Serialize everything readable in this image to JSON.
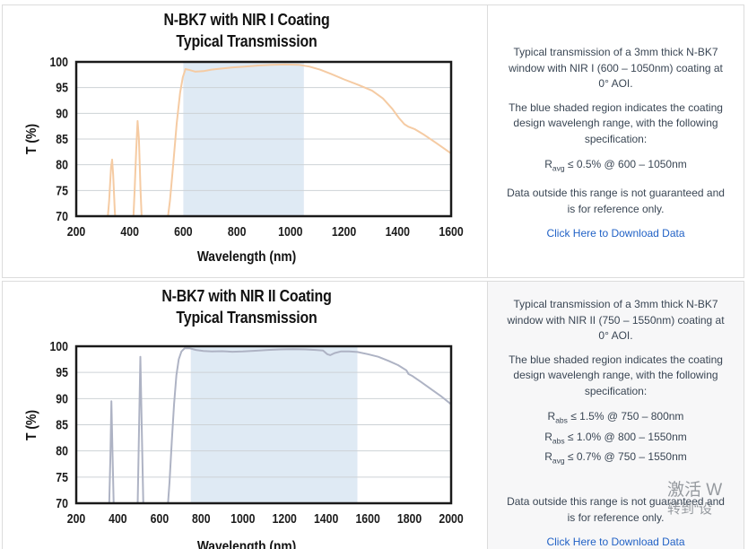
{
  "rows": [
    {
      "title_line1": "N-BK7 with NIR I Coating",
      "title_line2": "Typical Transmission",
      "xlabel": "Wavelength (nm)",
      "ylabel": "T (%)",
      "description": {
        "p1": "Typical transmission of a 3mm thick N-BK7 window with NIR I (600 – 1050nm) coating at 0° AOI.",
        "p2": "The blue shaded region indicates the coating design wavelengh range, with the following specification:",
        "specs": [
          {
            "base": "R",
            "sub": "avg",
            "text": " ≤ 0.5% @ 600 – 1050nm"
          }
        ],
        "p3": "Data outside this range is not guaranteed and is for reference only.",
        "link": "Click Here to Download Data"
      },
      "chart_data": {
        "type": "line",
        "title": "N-BK7 with NIR I Coating Typical Transmission",
        "xlabel": "Wavelength (nm)",
        "ylabel": "T (%)",
        "xlim": [
          200,
          1600
        ],
        "ylim": [
          70,
          100
        ],
        "xticks": [
          200,
          400,
          600,
          800,
          1000,
          1200,
          1400,
          1600
        ],
        "yticks": [
          70,
          75,
          80,
          85,
          90,
          95,
          100
        ],
        "grid": true,
        "grid_color": "#cdd2d6",
        "legend": "none",
        "shaded_region": {
          "x0": 600,
          "x1": 1050,
          "color": "#dfeaf4",
          "meaning": "coating design wavelength range 600–1050nm"
        },
        "line_color": "#f5cba3",
        "series": [
          {
            "name": "Transmission (%)",
            "points": [
              [
                315,
                68
              ],
              [
                323,
                73
              ],
              [
                330,
                79.5
              ],
              [
                334,
                81
              ],
              [
                338,
                78
              ],
              [
                344,
                71
              ],
              [
                348,
                68
              ],
              [
                412,
                68
              ],
              [
                418,
                75
              ],
              [
                424,
                83
              ],
              [
                429,
                88.5
              ],
              [
                434,
                85
              ],
              [
                440,
                75
              ],
              [
                446,
                68
              ],
              [
                538,
                68
              ],
              [
                550,
                73
              ],
              [
                562,
                80
              ],
              [
                575,
                88
              ],
              [
                588,
                94
              ],
              [
                598,
                97
              ],
              [
                608,
                98.6
              ],
              [
                625,
                98.4
              ],
              [
                645,
                98.1
              ],
              [
                675,
                98.2
              ],
              [
                705,
                98.5
              ],
              [
                740,
                98.7
              ],
              [
                780,
                98.9
              ],
              [
                830,
                99.1
              ],
              [
                880,
                99.3
              ],
              [
                930,
                99.45
              ],
              [
                980,
                99.5
              ],
              [
                1030,
                99.45
              ],
              [
                1070,
                99.1
              ],
              [
                1110,
                98.5
              ],
              [
                1150,
                97.7
              ],
              [
                1200,
                96.6
              ],
              [
                1255,
                95.5
              ],
              [
                1305,
                94.4
              ],
              [
                1345,
                92.9
              ],
              [
                1380,
                90.9
              ],
              [
                1405,
                89.1
              ],
              [
                1425,
                87.9
              ],
              [
                1440,
                87.4
              ],
              [
                1465,
                86.9
              ],
              [
                1500,
                85.8
              ],
              [
                1545,
                84.2
              ],
              [
                1600,
                82.2
              ]
            ]
          }
        ]
      }
    },
    {
      "title_line1": "N-BK7 with NIR II Coating",
      "title_line2": "Typical Transmission",
      "xlabel": "Wavelength (nm)",
      "ylabel": "T (%)",
      "description": {
        "p1": "Typical transmission of a 3mm thick N-BK7 window with NIR II (750 – 1550nm) coating at 0° AOI.",
        "p2": "The blue shaded region indicates the coating design wavelengh range, with the following specification:",
        "specs": [
          {
            "base": "R",
            "sub": "abs",
            "text": " ≤ 1.5% @ 750 – 800nm"
          },
          {
            "base": "R",
            "sub": "abs",
            "text": " ≤ 1.0% @ 800 – 1550nm"
          },
          {
            "base": "R",
            "sub": "avg",
            "text": " ≤ 0.7% @ 750 – 1550nm"
          }
        ],
        "p3": "Data outside this range is not guaranteed and is for reference only.",
        "link": "Click Here to Download Data"
      },
      "chart_data": {
        "type": "line",
        "title": "N-BK7 with NIR II Coating Typical Transmission",
        "xlabel": "Wavelength (nm)",
        "ylabel": "T (%)",
        "xlim": [
          200,
          2000
        ],
        "ylim": [
          70,
          100
        ],
        "xticks": [
          200,
          400,
          600,
          800,
          1000,
          1200,
          1400,
          1600,
          1800,
          2000
        ],
        "yticks": [
          70,
          75,
          80,
          85,
          90,
          95,
          100
        ],
        "grid": true,
        "grid_color": "#cdd2d6",
        "legend": "none",
        "shaded_region": {
          "x0": 750,
          "x1": 1550,
          "color": "#dfeaf4",
          "meaning": "coating design wavelength range 750–1550nm"
        },
        "line_color": "#aeb3c4",
        "series": [
          {
            "name": "Transmission (%)",
            "points": [
              [
                357,
                68
              ],
              [
                364,
                79
              ],
              [
                369,
                89.5
              ],
              [
                374,
                80
              ],
              [
                381,
                68
              ],
              [
                494,
                68
              ],
              [
                501,
                83
              ],
              [
                508,
                98
              ],
              [
                515,
                84
              ],
              [
                523,
                68
              ],
              [
                637,
                68
              ],
              [
                648,
                74
              ],
              [
                659,
                82
              ],
              [
                670,
                89
              ],
              [
                681,
                94.5
              ],
              [
                692,
                97.5
              ],
              [
                705,
                99
              ],
              [
                720,
                99.6
              ],
              [
                745,
                99.6
              ],
              [
                775,
                99.3
              ],
              [
                810,
                99.1
              ],
              [
                850,
                99.0
              ],
              [
                900,
                99.05
              ],
              [
                950,
                98.95
              ],
              [
                1000,
                99.0
              ],
              [
                1060,
                99.15
              ],
              [
                1120,
                99.3
              ],
              [
                1180,
                99.4
              ],
              [
                1240,
                99.45
              ],
              [
                1300,
                99.4
              ],
              [
                1350,
                99.3
              ],
              [
                1385,
                99.2
              ],
              [
                1405,
                98.5
              ],
              [
                1420,
                98.3
              ],
              [
                1440,
                98.7
              ],
              [
                1470,
                99.0
              ],
              [
                1510,
                99.0
              ],
              [
                1550,
                98.9
              ],
              [
                1600,
                98.5
              ],
              [
                1650,
                98.0
              ],
              [
                1700,
                97.2
              ],
              [
                1745,
                96.4
              ],
              [
                1785,
                95.4
              ],
              [
                1795,
                94.7
              ],
              [
                1815,
                94.3
              ],
              [
                1855,
                93.2
              ],
              [
                1900,
                91.9
              ],
              [
                1950,
                90.5
              ],
              [
                2000,
                88.9
              ]
            ]
          }
        ]
      }
    }
  ],
  "watermark": {
    "line1": "激活 W",
    "line2": "转到“设"
  }
}
